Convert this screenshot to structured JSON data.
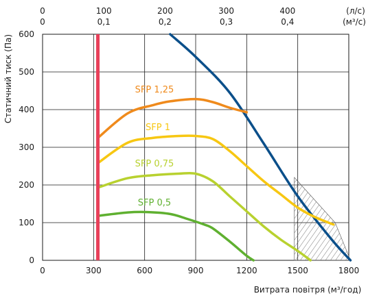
{
  "chart_data": {
    "type": "line",
    "xlabel": "Витрата повітря (м³/год)",
    "ylabel": "Статичний тиск (Па)",
    "xlim": [
      0,
      1800
    ],
    "ylim": [
      0,
      600
    ],
    "x_ticks": [
      0,
      300,
      600,
      900,
      1200,
      1500,
      1800
    ],
    "x_tick_labels": [
      "0",
      "300",
      "600",
      "900",
      "1200",
      "1500",
      "1800"
    ],
    "y_ticks": [
      0,
      100,
      200,
      300,
      400,
      500,
      600
    ],
    "y_tick_labels": [
      "0",
      "100",
      "200",
      "300",
      "400",
      "500",
      "600"
    ],
    "top_axis_ls": {
      "unit_label": "(л/с)",
      "ticks": [
        0,
        100,
        200,
        300,
        400
      ],
      "labels": [
        "0",
        "100",
        "200",
        "300",
        "400"
      ]
    },
    "top_axis_m3s": {
      "unit_label": "(м³/с)",
      "ticks": [
        0,
        0.1,
        0.2,
        0.3,
        0.4
      ],
      "labels": [
        "0",
        "0,1",
        "0,2",
        "0,3",
        "0,4"
      ]
    },
    "grid": true,
    "min_airflow_line": {
      "x": 325,
      "color": "#e8405a"
    },
    "hatched_region": [
      [
        1480,
        220
      ],
      [
        1720,
        100
      ],
      [
        1810,
        0
      ],
      [
        1480,
        0
      ]
    ],
    "series": [
      {
        "color": "#0b4f8a",
        "points": [
          [
            750,
            600
          ],
          [
            900,
            540
          ],
          [
            1100,
            445
          ],
          [
            1300,
            310
          ],
          [
            1500,
            170
          ],
          [
            1700,
            55
          ],
          [
            1810,
            0
          ]
        ]
      },
      {
        "name": "SFP 1,25",
        "color": "#ef8a1c",
        "points": [
          [
            325,
            325
          ],
          [
            500,
            390
          ],
          [
            650,
            412
          ],
          [
            750,
            422
          ],
          [
            900,
            428
          ],
          [
            1000,
            420
          ],
          [
            1100,
            405
          ],
          [
            1200,
            393
          ]
        ]
      },
      {
        "name": "SFP 1",
        "color": "#f7c712",
        "points": [
          [
            325,
            258
          ],
          [
            500,
            312
          ],
          [
            650,
            325
          ],
          [
            800,
            330
          ],
          [
            900,
            330
          ],
          [
            1000,
            322
          ],
          [
            1100,
            290
          ],
          [
            1200,
            250
          ],
          [
            1300,
            210
          ],
          [
            1400,
            175
          ],
          [
            1500,
            140
          ],
          [
            1600,
            115
          ],
          [
            1710,
            95
          ]
        ]
      },
      {
        "name": "SFP 0,75",
        "color": "#b8d12f",
        "points": [
          [
            325,
            193
          ],
          [
            500,
            218
          ],
          [
            650,
            226
          ],
          [
            800,
            230
          ],
          [
            900,
            230
          ],
          [
            1000,
            210
          ],
          [
            1100,
            170
          ],
          [
            1200,
            130
          ],
          [
            1300,
            90
          ],
          [
            1400,
            55
          ],
          [
            1500,
            25
          ],
          [
            1575,
            0
          ]
        ]
      },
      {
        "name": "SFP 0,5",
        "color": "#5fb030",
        "points": [
          [
            325,
            118
          ],
          [
            500,
            127
          ],
          [
            620,
            128
          ],
          [
            750,
            123
          ],
          [
            850,
            110
          ],
          [
            950,
            95
          ],
          [
            1000,
            85
          ],
          [
            1100,
            50
          ],
          [
            1200,
            12
          ],
          [
            1240,
            0
          ]
        ]
      }
    ]
  }
}
